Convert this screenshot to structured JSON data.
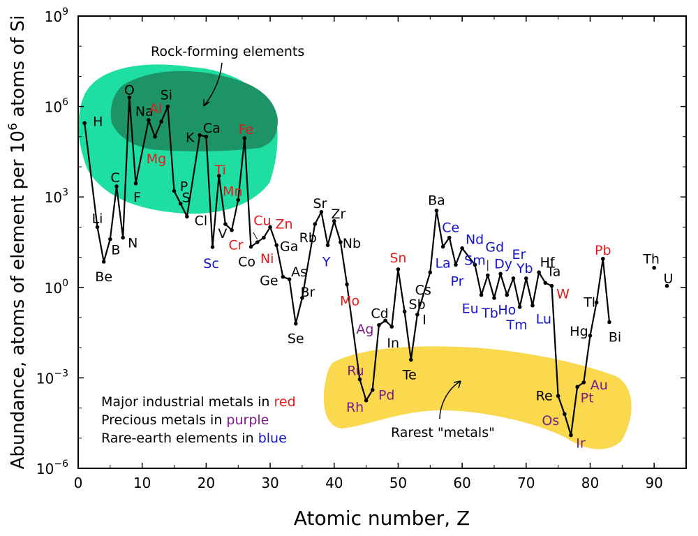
{
  "chart_data": {
    "type": "line",
    "x_axis": {
      "label": "Atomic number, Z",
      "min": 0,
      "max": 95,
      "ticks": [
        "0",
        "10",
        "20",
        "30",
        "40",
        "50",
        "60",
        "70",
        "80",
        "90"
      ]
    },
    "y_axis": {
      "label_main": "Abundance, atoms of element per 10",
      "label_sup": "6",
      "label_tail": " atoms of Si",
      "scale": "log10",
      "min_exp": -6,
      "max_exp": 9,
      "ticks": [
        {
          "exp": -6,
          "base": "10",
          "sup": "−6"
        },
        {
          "exp": -3,
          "base": "10",
          "sup": "−3"
        },
        {
          "exp": 0,
          "base": "10",
          "sup": "0"
        },
        {
          "exp": 3,
          "base": "10",
          "sup": "3"
        },
        {
          "exp": 6,
          "base": "10",
          "sup": "6"
        },
        {
          "exp": 9,
          "base": "10",
          "sup": "9"
        }
      ]
    },
    "grid": false,
    "colors": {
      "line": "#000000",
      "default_label": "#000000",
      "industrial": "#e8191c",
      "precious": "#7b1d83",
      "rare_earth": "#1414cc",
      "rock_region": "#1edea1",
      "rock_core": "#1c9467",
      "rare_region": "#fad94f",
      "background": "#ffffff"
    },
    "series": [
      {
        "values": [
          {
            "z": 1,
            "y": 5.45,
            "s": "H",
            "c": "default",
            "lx": 12,
            "ly": -2,
            "a": "start"
          },
          {
            "z": 3,
            "y": 2.0,
            "s": "Li",
            "c": "default",
            "lx": 0,
            "ly": -12,
            "a": "middle"
          },
          {
            "z": 4,
            "y": 0.85,
            "s": "Be",
            "c": "default",
            "lx": 0,
            "ly": 22,
            "a": "middle"
          },
          {
            "z": 5,
            "y": 1.6,
            "s": "B",
            "c": "default",
            "lx": 8,
            "ly": 16,
            "a": "middle"
          },
          {
            "z": 6,
            "y": 3.35,
            "s": "C",
            "c": "default",
            "lx": -2,
            "ly": -12,
            "a": "middle"
          },
          {
            "z": 7,
            "y": 1.65,
            "s": "N",
            "c": "default",
            "lx": 14,
            "ly": 8,
            "a": "middle"
          },
          {
            "z": 8,
            "y": 6.3,
            "s": "O",
            "c": "default",
            "lx": 0,
            "ly": -10,
            "a": "middle"
          },
          {
            "z": 9,
            "y": 3.45,
            "s": "F",
            "c": "default",
            "lx": 2,
            "ly": 20,
            "a": "middle"
          },
          {
            "z": 11,
            "y": 5.55,
            "s": "Na",
            "c": "default",
            "lx": -6,
            "ly": -12,
            "a": "middle"
          },
          {
            "z": 12,
            "y": 5.0,
            "s": "Mg",
            "c": "industrial",
            "lx": 2,
            "ly": 32,
            "a": "middle"
          },
          {
            "z": 13,
            "y": 5.5,
            "s": "Al",
            "c": "industrial",
            "lx": -8,
            "ly": -18,
            "a": "middle"
          },
          {
            "z": 14,
            "y": 6.0,
            "s": "Si",
            "c": "default",
            "lx": -2,
            "ly": -16,
            "a": "middle"
          },
          {
            "z": 15,
            "y": 3.2,
            "s": "P",
            "c": "default",
            "lx": 14,
            "ly": -6,
            "a": "middle"
          },
          {
            "z": 16,
            "y": 2.78,
            "s": "S",
            "c": "default",
            "lx": 8,
            "ly": -8,
            "a": "middle"
          },
          {
            "z": 17,
            "y": 2.35,
            "s": "Cl",
            "c": "default",
            "lx": 20,
            "ly": 6,
            "a": "middle"
          },
          {
            "z": 19,
            "y": 5.05,
            "s": "K",
            "c": "default",
            "lx": -14,
            "ly": 4,
            "a": "middle"
          },
          {
            "z": 20,
            "y": 5.0,
            "s": "Ca",
            "c": "default",
            "lx": 8,
            "ly": -12,
            "a": "middle"
          },
          {
            "z": 21,
            "y": 1.34,
            "s": "Sc",
            "c": "rare_earth",
            "lx": -2,
            "ly": 24,
            "a": "middle"
          },
          {
            "z": 22,
            "y": 3.7,
            "s": "Ti",
            "c": "industrial",
            "lx": 2,
            "ly": -8,
            "a": "middle"
          },
          {
            "z": 23,
            "y": 2.1,
            "s": "V",
            "c": "default",
            "lx": -4,
            "ly": 14,
            "a": "middle"
          },
          {
            "z": 24,
            "y": 1.9,
            "s": "Cr",
            "c": "industrial",
            "lx": 6,
            "ly": 22,
            "a": "middle"
          },
          {
            "z": 25,
            "y": 2.9,
            "s": "Mn",
            "c": "industrial",
            "lx": -8,
            "ly": -12,
            "a": "middle"
          },
          {
            "z": 26,
            "y": 4.95,
            "s": "Fe",
            "c": "industrial",
            "lx": 2,
            "ly": -12,
            "a": "middle"
          },
          {
            "z": 27,
            "y": 1.35,
            "s": "Co",
            "c": "default",
            "lx": -6,
            "ly": 22,
            "a": "middle"
          },
          {
            "z": 28,
            "y": 1.5,
            "s": "Ni",
            "c": "industrial",
            "lx": 14,
            "ly": 24,
            "a": "middle"
          },
          {
            "z": 29,
            "y": 1.65,
            "s": "Cu",
            "c": "industrial",
            "lx": -2,
            "ly": -24,
            "a": "middle"
          },
          {
            "z": 30,
            "y": 2.0,
            "s": "Zn",
            "c": "industrial",
            "lx": 20,
            "ly": -4,
            "a": "middle"
          },
          {
            "z": 31,
            "y": 1.4,
            "s": "Ga",
            "c": "default",
            "lx": 18,
            "ly": 2,
            "a": "middle"
          },
          {
            "z": 32,
            "y": 0.35,
            "s": "Ge",
            "c": "default",
            "lx": -20,
            "ly": 6,
            "a": "middle"
          },
          {
            "z": 33,
            "y": 0.27,
            "s": "As",
            "c": "default",
            "lx": 14,
            "ly": -10,
            "a": "middle"
          },
          {
            "z": 34,
            "y": -1.2,
            "s": "Se",
            "c": "default",
            "lx": 0,
            "ly": 22,
            "a": "middle"
          },
          {
            "z": 35,
            "y": -0.35,
            "s": "Br",
            "c": "default",
            "lx": 8,
            "ly": -8,
            "a": "middle"
          },
          {
            "z": 37,
            "y": 2.1,
            "s": "Rb",
            "c": "default",
            "lx": -10,
            "ly": 20,
            "a": "middle"
          },
          {
            "z": 38,
            "y": 2.5,
            "s": "Sr",
            "c": "default",
            "lx": -2,
            "ly": -12,
            "a": "middle"
          },
          {
            "z": 39,
            "y": 1.4,
            "s": "Y",
            "c": "rare_earth",
            "lx": -2,
            "ly": 24,
            "a": "middle"
          },
          {
            "z": 40,
            "y": 2.2,
            "s": "Zr",
            "c": "default",
            "lx": 6,
            "ly": -10,
            "a": "middle"
          },
          {
            "z": 41,
            "y": 1.5,
            "s": "Nb",
            "c": "default",
            "lx": 16,
            "ly": 2,
            "a": "middle"
          },
          {
            "z": 42,
            "y": 0.1,
            "s": "Mo",
            "c": "industrial",
            "lx": 4,
            "ly": 24,
            "a": "middle"
          },
          {
            "z": 44,
            "y": -3.05,
            "s": "Ru",
            "c": "precious",
            "lx": -6,
            "ly": -12,
            "a": "middle"
          },
          {
            "z": 45,
            "y": -3.75,
            "s": "Rh",
            "c": "precious",
            "lx": -16,
            "ly": 10,
            "a": "middle"
          },
          {
            "z": 46,
            "y": -3.4,
            "s": "Pd",
            "c": "precious",
            "lx": 20,
            "ly": 8,
            "a": "middle"
          },
          {
            "z": 47,
            "y": -1.25,
            "s": "Ag",
            "c": "precious",
            "lx": -20,
            "ly": 6,
            "a": "middle"
          },
          {
            "z": 48,
            "y": -1.1,
            "s": "Cd",
            "c": "default",
            "lx": -8,
            "ly": -10,
            "a": "middle"
          },
          {
            "z": 49,
            "y": -1.3,
            "s": "In",
            "c": "default",
            "lx": 2,
            "ly": 24,
            "a": "middle"
          },
          {
            "z": 50,
            "y": 0.6,
            "s": "Sn",
            "c": "industrial",
            "lx": 0,
            "ly": -16,
            "a": "middle"
          },
          {
            "z": 51,
            "y": -0.8,
            "s": "Sb",
            "c": "default",
            "lx": 18,
            "ly": -10,
            "a": "middle"
          },
          {
            "z": 52,
            "y": -2.4,
            "s": "Te",
            "c": "default",
            "lx": -2,
            "ly": 22,
            "a": "middle"
          },
          {
            "z": 53,
            "y": -0.9,
            "s": "I",
            "c": "default",
            "lx": 10,
            "ly": 8,
            "a": "middle"
          },
          {
            "z": 55,
            "y": 0.5,
            "s": "Cs",
            "c": "default",
            "lx": -10,
            "ly": 26,
            "a": "middle"
          },
          {
            "z": 56,
            "y": 2.55,
            "s": "Ba",
            "c": "default",
            "lx": 0,
            "ly": -14,
            "a": "middle"
          },
          {
            "z": 57,
            "y": 1.35,
            "s": "La",
            "c": "rare_earth",
            "lx": 0,
            "ly": 24,
            "a": "middle"
          },
          {
            "z": 58,
            "y": 1.65,
            "s": "Ce",
            "c": "rare_earth",
            "lx": 2,
            "ly": -14,
            "a": "middle"
          },
          {
            "z": 59,
            "y": 0.75,
            "s": "Pr",
            "c": "rare_earth",
            "lx": 2,
            "ly": 24,
            "a": "middle"
          },
          {
            "z": 60,
            "y": 1.3,
            "s": "Nd",
            "c": "rare_earth",
            "lx": 18,
            "ly": -12,
            "a": "middle"
          },
          {
            "z": 62,
            "y": 0.75,
            "s": "Sm",
            "c": "rare_earth",
            "lx": 0,
            "ly": -6,
            "a": "middle"
          },
          {
            "z": 63,
            "y": -0.25,
            "s": "Eu",
            "c": "rare_earth",
            "lx": -16,
            "ly": 20,
            "a": "middle"
          },
          {
            "z": 64,
            "y": 0.4,
            "s": "Gd",
            "c": "rare_earth",
            "lx": 10,
            "ly": -40,
            "a": "middle"
          },
          {
            "z": 65,
            "y": -0.35,
            "s": "Tb",
            "c": "rare_earth",
            "lx": -6,
            "ly": 22,
            "a": "middle"
          },
          {
            "z": 66,
            "y": 0.45,
            "s": "Dy",
            "c": "rare_earth",
            "lx": 4,
            "ly": -14,
            "a": "middle"
          },
          {
            "z": 67,
            "y": -0.25,
            "s": "Ho",
            "c": "rare_earth",
            "lx": 0,
            "ly": 22,
            "a": "middle"
          },
          {
            "z": 68,
            "y": 0.3,
            "s": "Er",
            "c": "rare_earth",
            "lx": 8,
            "ly": -34,
            "a": "middle"
          },
          {
            "z": 69,
            "y": -0.65,
            "s": "Tm",
            "c": "rare_earth",
            "lx": -4,
            "ly": 26,
            "a": "middle"
          },
          {
            "z": 70,
            "y": 0.3,
            "s": "Yb",
            "c": "rare_earth",
            "lx": -2,
            "ly": -14,
            "a": "middle"
          },
          {
            "z": 71,
            "y": -0.6,
            "s": "Lu",
            "c": "rare_earth",
            "lx": 16,
            "ly": 20,
            "a": "middle"
          },
          {
            "z": 72,
            "y": 0.5,
            "s": "Hf",
            "c": "default",
            "lx": 12,
            "ly": -14,
            "a": "middle"
          },
          {
            "z": 73,
            "y": 0.15,
            "s": "Ta",
            "c": "default",
            "lx": 12,
            "ly": -16,
            "a": "middle"
          },
          {
            "z": 74,
            "y": 0.05,
            "s": "W",
            "c": "industrial",
            "lx": 16,
            "ly": 12,
            "a": "middle"
          },
          {
            "z": 75,
            "y": -3.6,
            "s": "Re",
            "c": "default",
            "lx": -20,
            "ly": 0,
            "a": "middle"
          },
          {
            "z": 76,
            "y": -4.2,
            "s": "Os",
            "c": "precious",
            "lx": -20,
            "ly": 10,
            "a": "middle"
          },
          {
            "z": 77,
            "y": -4.9,
            "s": "Ir",
            "c": "precious",
            "lx": 14,
            "ly": 12,
            "a": "middle"
          },
          {
            "z": 78,
            "y": -3.3,
            "s": "Pt",
            "c": "precious",
            "lx": 14,
            "ly": 16,
            "a": "middle"
          },
          {
            "z": 79,
            "y": -3.15,
            "s": "Au",
            "c": "precious",
            "lx": 22,
            "ly": 4,
            "a": "middle"
          },
          {
            "z": 80,
            "y": -1.6,
            "s": "Hg",
            "c": "default",
            "lx": -16,
            "ly": -6,
            "a": "middle"
          },
          {
            "z": 81,
            "y": -0.5,
            "s": "Tl",
            "c": "default",
            "lx": -10,
            "ly": 0,
            "a": "middle"
          },
          {
            "z": 82,
            "y": 0.95,
            "s": "Pb",
            "c": "industrial",
            "lx": 0,
            "ly": -12,
            "a": "middle"
          },
          {
            "z": 83,
            "y": -1.15,
            "s": "Bi",
            "c": "default",
            "lx": 8,
            "ly": 22,
            "a": "middle"
          }
        ]
      },
      {
        "values": [
          {
            "z": 90,
            "y": 0.65,
            "s": "Th",
            "c": "default",
            "lx": -4,
            "ly": -12,
            "a": "middle"
          }
        ]
      },
      {
        "values": [
          {
            "z": 92,
            "y": 0.05,
            "s": "U",
            "c": "default",
            "lx": 2,
            "ly": -10,
            "a": "middle"
          }
        ]
      }
    ],
    "annotations": {
      "rock_label": "Rock-forming elements",
      "rare_label": "Rarest \"metals\"",
      "legend": [
        {
          "prefix": "Major industrial metals in ",
          "word": "red",
          "color_key": "industrial"
        },
        {
          "prefix": "Precious metals in ",
          "word": "purple",
          "color_key": "precious"
        },
        {
          "prefix": "Rare-earth elements in ",
          "word": "blue",
          "color_key": "rare_earth"
        }
      ]
    }
  }
}
